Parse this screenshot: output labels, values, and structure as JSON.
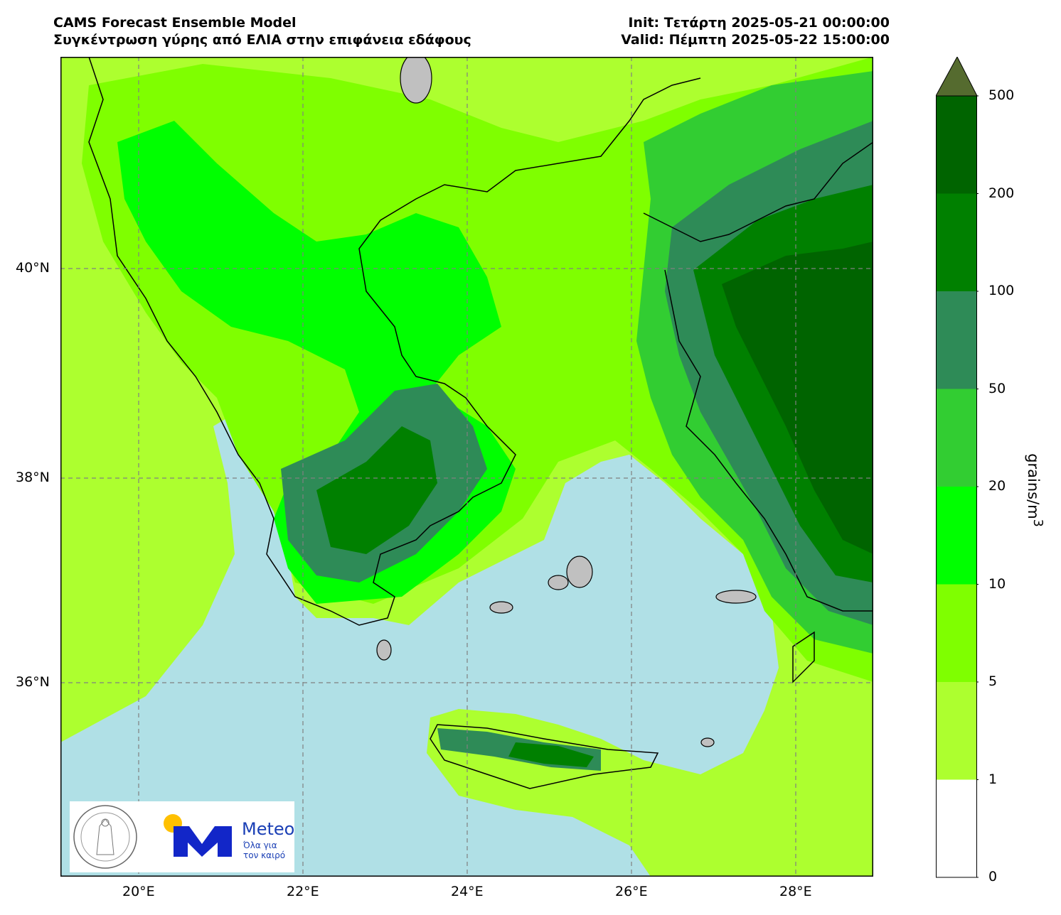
{
  "header": {
    "title_line1": "CAMS Forecast Ensemble Model",
    "title_line2": "Συγκέντρωση γύρης από ΕΛΙΑ στην επιφάνεια εδάφους",
    "init": "Init: Τετάρτη 2025-05-21 00:00:00",
    "valid": "Valid: Πέμπτη 2025-05-22 15:00:00"
  },
  "axes": {
    "lat_labels": [
      "40°N",
      "38°N",
      "36°N"
    ],
    "lon_labels": [
      "20°E",
      "22°E",
      "24°E",
      "26°E",
      "28°E"
    ]
  },
  "colorbar": {
    "unit": "grains/m",
    "unit_sup": "3",
    "ticks": [
      "0",
      "1",
      "5",
      "10",
      "20",
      "50",
      "100",
      "200",
      "500"
    ],
    "colors": [
      "#ffffff",
      "#adff2f",
      "#7fff00",
      "#00ff00",
      "#32cd32",
      "#2e8b57",
      "#008000",
      "#006400",
      "#556b2f"
    ]
  },
  "logos": {
    "observatory": "observatory-seal",
    "brand": "Meteo",
    "slogan_line1": "Όλα για",
    "slogan_line2": "τον καιρό",
    "sun_color": "#ffc000",
    "brand_color": "#1226c8"
  }
}
